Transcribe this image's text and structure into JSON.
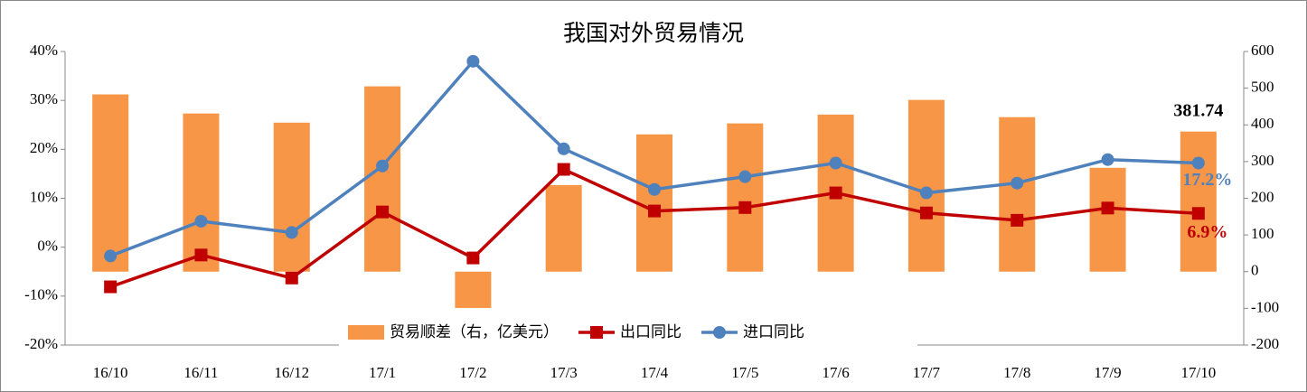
{
  "chart_data": {
    "type": "combo",
    "title": "我国对外贸易情况",
    "categories": [
      "16/10",
      "16/11",
      "16/12",
      "17/1",
      "17/2",
      "17/3",
      "17/4",
      "17/5",
      "17/6",
      "17/7",
      "17/8",
      "17/9",
      "17/10"
    ],
    "ylim": [
      -20,
      40
    ],
    "yticks": [
      {
        "value": -20,
        "label": "-20%"
      },
      {
        "value": -10,
        "label": "-10%"
      },
      {
        "value": 0,
        "label": "0%"
      },
      {
        "value": 10,
        "label": "10%"
      },
      {
        "value": 20,
        "label": "20%"
      },
      {
        "value": 30,
        "label": "30%"
      },
      {
        "value": 40,
        "label": "40%"
      }
    ],
    "y2lim": [
      -200,
      600
    ],
    "y2ticks": [
      -200,
      -100,
      0,
      100,
      200,
      300,
      400,
      500,
      600
    ],
    "series": [
      {
        "name": "贸易顺差（右，亿美元）",
        "type": "bar",
        "axis": "y2",
        "color": "#F79646",
        "values": [
          483,
          431,
          406,
          505,
          -99,
          236,
          374,
          404,
          428,
          468,
          421,
          283,
          381.74
        ],
        "value_labels": [
          null,
          null,
          null,
          null,
          null,
          null,
          null,
          null,
          null,
          null,
          null,
          null,
          "381.74"
        ]
      },
      {
        "name": "出口同比",
        "type": "line",
        "marker": "square",
        "color": "#C00000",
        "values": [
          -8.1,
          -1.6,
          -6.3,
          7.2,
          -2.2,
          15.9,
          7.4,
          8.1,
          11.1,
          7.0,
          5.5,
          8.0,
          6.9
        ],
        "value_labels": [
          null,
          null,
          null,
          null,
          null,
          null,
          null,
          null,
          null,
          null,
          null,
          null,
          "6.9%"
        ]
      },
      {
        "name": "进口同比",
        "type": "line",
        "marker": "circle",
        "color": "#4F81BD",
        "values": [
          -1.8,
          5.3,
          3.0,
          16.6,
          38.0,
          20.1,
          11.8,
          14.4,
          17.2,
          11.1,
          13.1,
          17.9,
          17.2
        ],
        "value_labels": [
          null,
          null,
          null,
          null,
          null,
          null,
          null,
          null,
          null,
          null,
          null,
          null,
          "17.2%"
        ]
      }
    ],
    "legend": "bottom"
  }
}
